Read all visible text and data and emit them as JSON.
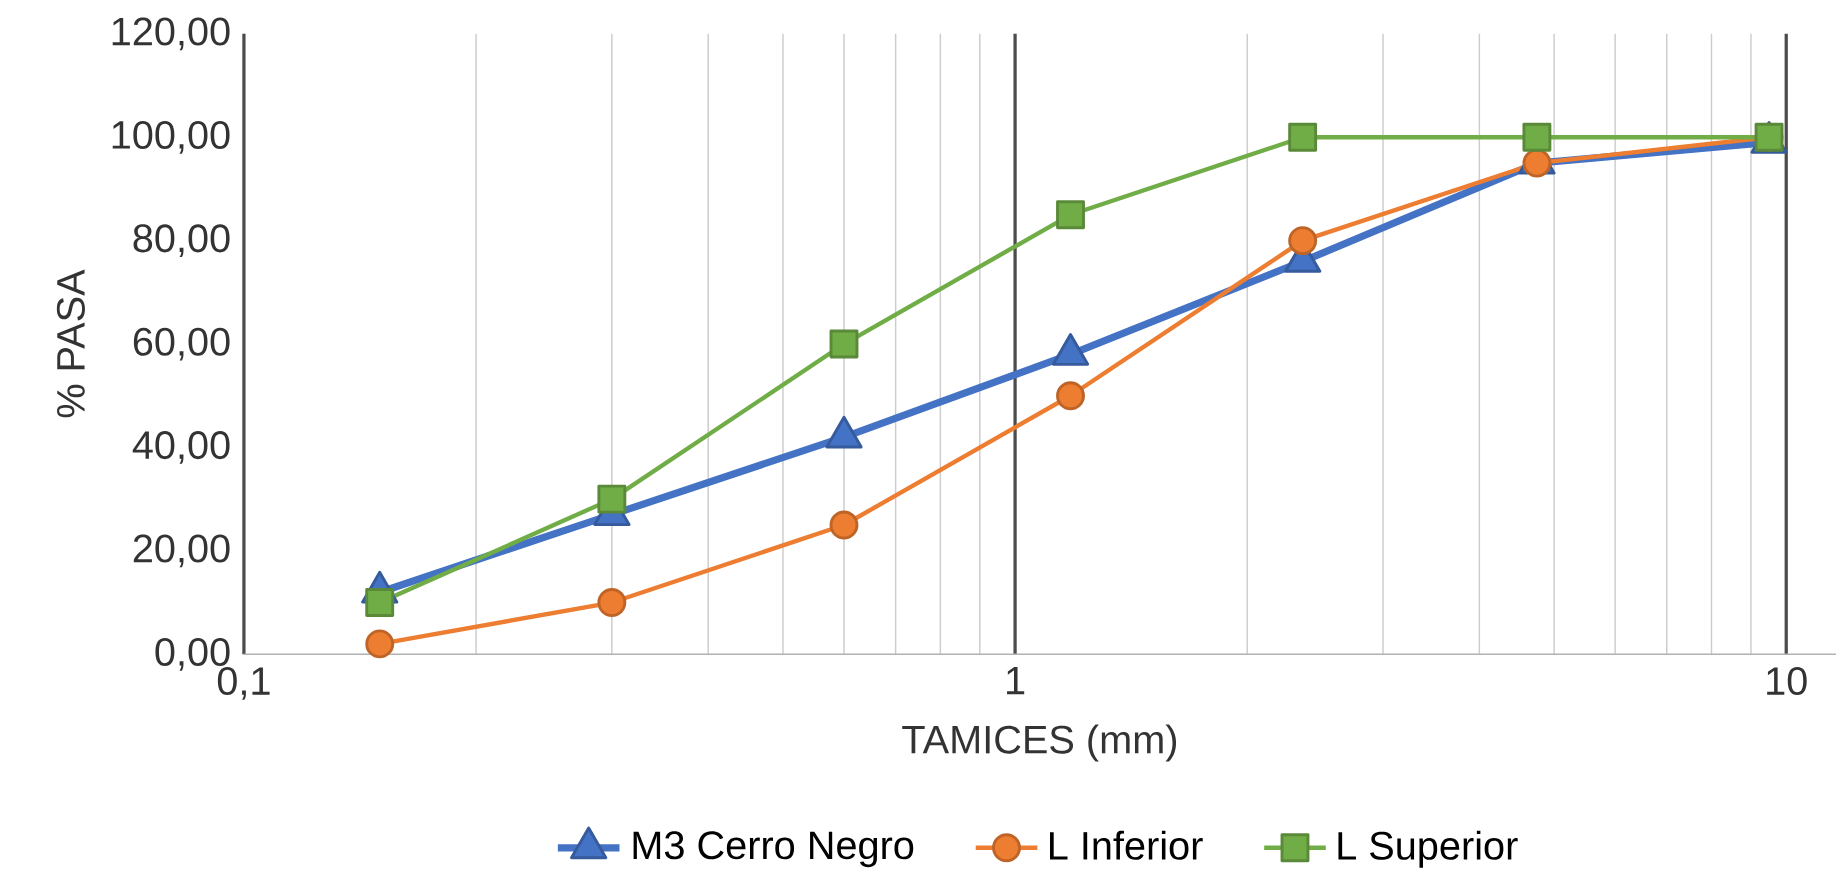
{
  "chart_data": {
    "type": "line",
    "xlabel": "TAMICES (mm)",
    "ylabel": "% PASA",
    "x": [
      0.15,
      0.3,
      0.6,
      1.18,
      2.36,
      4.75,
      9.5
    ],
    "series": [
      {
        "name": "M3 Cerro Negro",
        "color": "#4472c4",
        "marker": "triangle",
        "values": [
          12,
          27,
          42,
          58,
          76,
          95,
          99
        ]
      },
      {
        "name": "L Inferior",
        "color": "#ed7d31",
        "marker": "circle",
        "values": [
          2,
          10,
          25,
          50,
          80,
          95,
          100
        ]
      },
      {
        "name": "L Superior",
        "color": "#70ad47",
        "marker": "square",
        "values": [
          10,
          30,
          60,
          85,
          100,
          100,
          100
        ]
      }
    ],
    "log": "x",
    "xlim": [
      0.1,
      11.6
    ],
    "xticks": [
      {
        "value": 0.1,
        "label": "0,1"
      },
      {
        "value": 1,
        "label": "1"
      },
      {
        "value": 10,
        "label": "10"
      }
    ],
    "ylim": [
      0,
      120
    ],
    "yticks": [
      {
        "value": 0,
        "label": "0,00"
      },
      {
        "value": 20,
        "label": "20,00"
      },
      {
        "value": 40,
        "label": "40,00"
      },
      {
        "value": 60,
        "label": "60,00"
      },
      {
        "value": 80,
        "label": "80,00"
      },
      {
        "value": 100,
        "label": "100,00"
      },
      {
        "value": 120,
        "label": "120,00"
      }
    ],
    "grid": "x",
    "legend": "bottom",
    "line_style": "solid"
  }
}
